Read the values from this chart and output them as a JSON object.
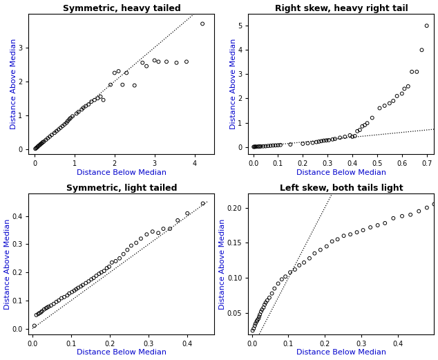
{
  "titles": [
    "Symmetric, heavy tailed",
    "Right skew, heavy right tail",
    "Symmetric, light tailed",
    "Left skew, both tails light"
  ],
  "xlabel": "Distance Below Median",
  "ylabel": "Distance Above Median",
  "title_color": "black",
  "axis_label_color": "#0000CC",
  "background": "white",
  "marker_size": 3.5,
  "marker_edge_width": 0.7,
  "line_width": 0.8,
  "plot1": {
    "xlim": [
      -0.15,
      4.5
    ],
    "ylim": [
      -0.15,
      4.0
    ],
    "xticks": [
      0,
      1,
      2,
      3,
      4
    ],
    "yticks": [
      0,
      1,
      2,
      3
    ]
  },
  "plot2": {
    "xlim": [
      -0.02,
      0.73
    ],
    "ylim": [
      -0.3,
      5.5
    ],
    "xticks": [
      0.0,
      0.1,
      0.2,
      0.3,
      0.4,
      0.5,
      0.6,
      0.7
    ],
    "yticks": [
      0,
      1,
      2,
      3,
      4,
      5
    ]
  },
  "plot3": {
    "xlim": [
      -0.01,
      0.47
    ],
    "ylim": [
      -0.02,
      0.48
    ],
    "xticks": [
      0.0,
      0.1,
      0.2,
      0.3,
      0.4
    ],
    "yticks": [
      0.0,
      0.1,
      0.2,
      0.3,
      0.4
    ]
  },
  "plot4": {
    "xlim": [
      -0.01,
      0.5
    ],
    "ylim": [
      0.02,
      0.22
    ],
    "xticks": [
      0.0,
      0.1,
      0.2,
      0.3,
      0.4
    ],
    "yticks": [
      0.05,
      0.1,
      0.15,
      0.2
    ]
  }
}
